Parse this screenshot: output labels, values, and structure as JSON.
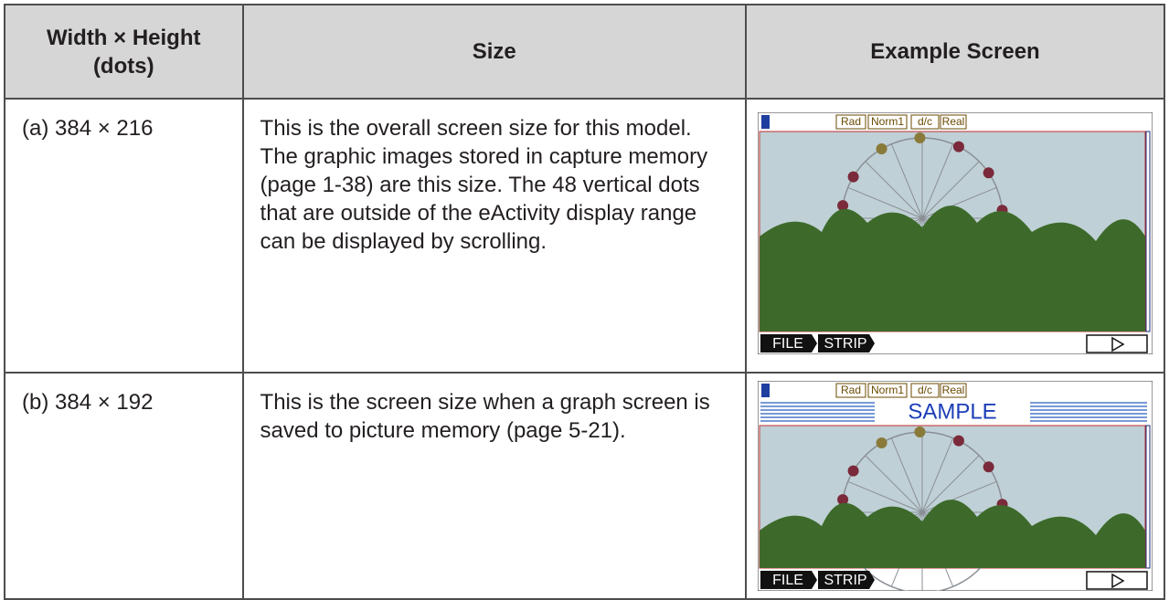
{
  "table": {
    "header": [
      [
        "Width × Height",
        "(dots)"
      ],
      "Size",
      "Example Screen"
    ],
    "rows": [
      {
        "dims": "(a) 384 × 216",
        "size": "This is the overall screen size for this model. The graphic images stored in capture memory (page 1-38) are this size. The 48 vertical dots that are outside of the eActivity display range can be displayed by scrolling.",
        "screen": {
          "status": [
            "Rad",
            "Norm1",
            "d/c",
            "Real"
          ],
          "softkeys": [
            "FILE",
            "STRIP"
          ]
        }
      },
      {
        "dims": "(b) 384 × 192",
        "size": "This is the screen size when a graph screen is saved to picture memory (page 5-21).",
        "screen": {
          "status": [
            "Rad",
            "Norm1",
            "d/c",
            "Real"
          ],
          "title": "SAMPLE",
          "softkeys": [
            "FILE",
            "STRIP"
          ]
        }
      }
    ]
  }
}
